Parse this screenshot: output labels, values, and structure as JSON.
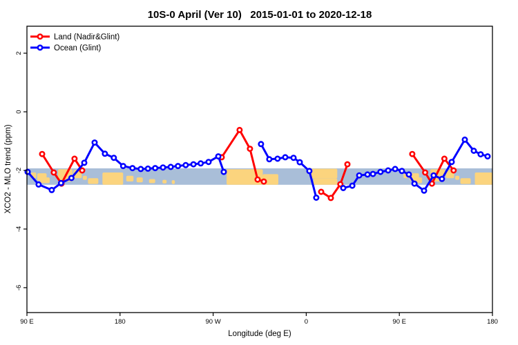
{
  "title": "10S-0 April (Ver 10)   2015-01-01 to 2020-12-18",
  "chart_data": {
    "type": "line",
    "title": "10S-0 April (Ver 10)   2015-01-01 to 2020-12-18",
    "xlabel": "Longitude (deg E)",
    "ylabel": "XCO2 - MLO trend (ppm)",
    "x_axis_note": "wrapped longitude axis: 90E → 180 → 90W → 0 → 90E → 180; positions stored as degrees east of 90E (0–450)",
    "x_span_deg": [
      0,
      450
    ],
    "ylim": [
      -6.85,
      2.92
    ],
    "grid": false,
    "legend_position": "top-left",
    "x_ticks": [
      {
        "pos": 0,
        "label": "90 E"
      },
      {
        "pos": 90,
        "label": "180"
      },
      {
        "pos": 180,
        "label": "90 W"
      },
      {
        "pos": 270,
        "label": "0"
      },
      {
        "pos": 360,
        "label": "90 E"
      },
      {
        "pos": 450,
        "label": "180"
      }
    ],
    "y_ticks": [
      {
        "value": 2,
        "label": "2"
      },
      {
        "value": 0,
        "label": "0"
      },
      {
        "value": -2,
        "label": "-2"
      },
      {
        "value": -4,
        "label": "-4"
      },
      {
        "value": -6,
        "label": "-6"
      }
    ],
    "series": [
      {
        "name": "Land (Nadir&Glint)",
        "color": "#ff0000",
        "marker": "open-circle",
        "segments": [
          [
            [
              14.7,
              -1.44
            ],
            [
              26,
              -2.07
            ],
            [
              33.4,
              -2.45
            ],
            [
              46,
              -1.6
            ],
            [
              53.4,
              -2.0
            ]
          ],
          [
            [
              188.3,
              -1.55
            ],
            [
              205.6,
              -0.62
            ],
            [
              215.6,
              -1.26
            ],
            [
              223,
              -2.31
            ],
            [
              229,
              -2.38
            ]
          ],
          [
            [
              284.4,
              -2.73
            ],
            [
              293.8,
              -2.94
            ],
            [
              303,
              -2.47
            ],
            [
              309.8,
              -1.79
            ]
          ],
          [
            [
              372.5,
              -1.44
            ],
            [
              385,
              -2.07
            ],
            [
              391.5,
              -2.45
            ],
            [
              403.5,
              -1.6
            ],
            [
              412.5,
              -2.0
            ]
          ]
        ]
      },
      {
        "name": "Ocean (Glint)",
        "color": "#0000ff",
        "marker": "open-circle",
        "segments": [
          [
            [
              0.7,
              -2.05
            ],
            [
              11.3,
              -2.48
            ],
            [
              24,
              -2.67
            ],
            [
              33,
              -2.43
            ],
            [
              43,
              -2.26
            ],
            [
              55.4,
              -1.74
            ],
            [
              65.4,
              -1.05
            ],
            [
              75.4,
              -1.43
            ],
            [
              84,
              -1.57
            ],
            [
              93,
              -1.85
            ],
            [
              102,
              -1.92
            ],
            [
              110,
              -1.95
            ],
            [
              117,
              -1.94
            ],
            [
              124,
              -1.92
            ],
            [
              131.5,
              -1.9
            ],
            [
              139,
              -1.88
            ],
            [
              146,
              -1.85
            ],
            [
              153.5,
              -1.82
            ],
            [
              161,
              -1.79
            ],
            [
              168,
              -1.76
            ],
            [
              175.6,
              -1.71
            ],
            [
              185,
              -1.52
            ],
            [
              190.3,
              -2.05
            ]
          ],
          [
            [
              226.3,
              -1.1
            ],
            [
              234.3,
              -1.62
            ],
            [
              242.3,
              -1.6
            ],
            [
              249.7,
              -1.55
            ],
            [
              257.7,
              -1.57
            ],
            [
              263.7,
              -1.72
            ],
            [
              273,
              -2.02
            ],
            [
              279.7,
              -2.93
            ]
          ],
          [
            [
              305.8,
              -2.6
            ],
            [
              314.5,
              -2.52
            ],
            [
              321.2,
              -2.17
            ],
            [
              329.2,
              -2.14
            ],
            [
              334.5,
              -2.12
            ],
            [
              341.8,
              -2.05
            ],
            [
              349.2,
              -2.0
            ],
            [
              355.9,
              -1.95
            ],
            [
              362.5,
              -2.02
            ],
            [
              369.2,
              -2.14
            ],
            [
              374.6,
              -2.45
            ],
            [
              383.9,
              -2.69
            ],
            [
              393.2,
              -2.17
            ],
            [
              401.2,
              -2.29
            ],
            [
              410.6,
              -1.71
            ],
            [
              423.3,
              -0.95
            ],
            [
              432,
              -1.33
            ],
            [
              438.6,
              -1.45
            ],
            [
              445.3,
              -1.52
            ]
          ]
        ]
      }
    ],
    "map_strip": {
      "ocean_color": "#a9bed8",
      "land_color": "#fbd47e",
      "y_range_ppm": [
        -1.93,
        -2.49
      ],
      "repeat_every_deg": 360,
      "land_patches": [
        [
          4,
          9,
          0.25,
          0.6
        ],
        [
          10,
          19,
          0.3,
          0.75
        ],
        [
          13,
          22,
          0.55,
          0.9
        ],
        [
          30,
          44,
          0.05,
          0.8
        ],
        [
          45,
          53,
          0.1,
          0.6
        ],
        [
          54,
          58,
          0.45,
          0.7
        ],
        [
          59,
          69,
          0.6,
          0.95
        ],
        [
          73,
          93,
          0.25,
          1.0
        ],
        [
          96,
          103,
          0.45,
          0.8
        ],
        [
          106,
          112,
          0.55,
          0.85
        ],
        [
          118,
          124,
          0.65,
          0.9
        ],
        [
          131,
          135,
          0.7,
          0.92
        ],
        [
          140,
          143,
          0.72,
          0.95
        ],
        [
          193,
          228,
          0.05,
          1.0
        ],
        [
          228,
          243,
          0.35,
          1.0
        ],
        [
          274,
          300,
          0.02,
          0.62
        ],
        [
          277,
          300,
          0.62,
          1.0
        ]
      ]
    }
  },
  "legend": {
    "items": [
      {
        "label": "Land (Nadir&Glint)",
        "color": "#ff0000"
      },
      {
        "label": "Ocean (Glint)",
        "color": "#0000ff"
      }
    ]
  }
}
